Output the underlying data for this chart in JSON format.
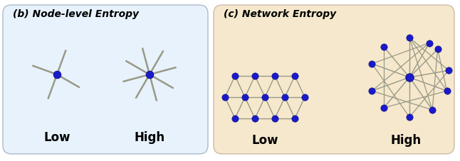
{
  "panel_b_title": "(b) Node-level Entropy",
  "panel_c_title": "(c) Network Entropy",
  "panel_b_bg": "#e8f2fc",
  "panel_c_bg": "#f5e8cc",
  "panel_b_border": "#aabbcc",
  "panel_c_border": "#ccbbaa",
  "edge_color": "#999988",
  "node_color": "#1a1acc",
  "node_edge_color": "#000077",
  "label_low": "Low",
  "label_high": "High",
  "title_fontsize": 10,
  "label_fontsize": 12
}
